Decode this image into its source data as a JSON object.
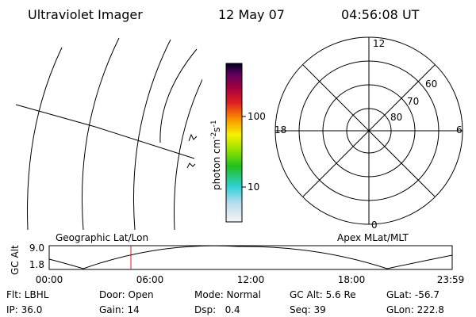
{
  "header": {
    "title": "Ultraviolet Imager",
    "date": "12 May 07",
    "time": "04:56:08 UT"
  },
  "colorbar": {
    "unit_parts": [
      "photon cm",
      "-2",
      "s",
      "-1"
    ],
    "tick_labels": [
      "100",
      "10"
    ]
  },
  "polar": {
    "mlt_labels": [
      "12",
      "6",
      "0",
      "18"
    ],
    "lat_labels": [
      "60",
      "70",
      "80"
    ]
  },
  "strip": {
    "y_axis_label": "GC Alt",
    "y_tick_labels": [
      "9.0",
      "1.8"
    ],
    "left_title": "Geographic Lat/Lon",
    "right_title": "Apex MLat/MLT",
    "time_labels": [
      "00:00",
      "06:00",
      "12:00",
      "18:00",
      "23:59"
    ]
  },
  "info": {
    "rows": [
      [
        "Flt: LBHL",
        "Door: Open",
        "Mode: Normal",
        "GC Alt: 5.6 Re",
        "GLat: -56.7"
      ],
      [
        "IP: 36.0",
        "Gain: 14",
        "Dsp:   0.4",
        "Seq: 39",
        "GLon: 222.8"
      ]
    ]
  }
}
